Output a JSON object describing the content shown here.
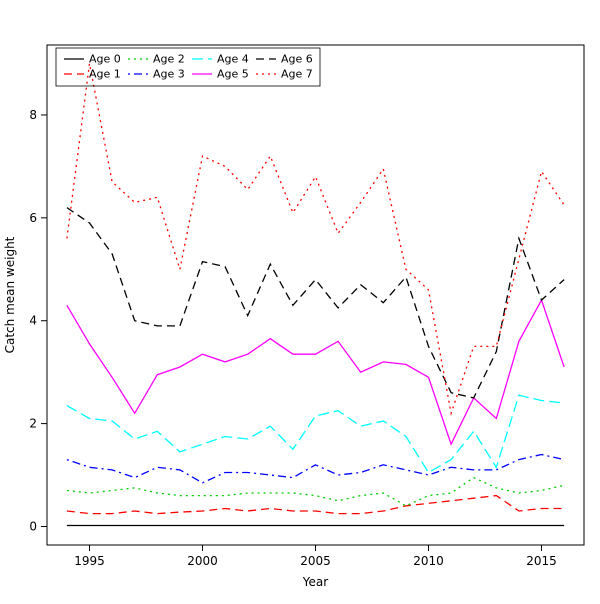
{
  "figure": {
    "background": "#ffffff",
    "axis_color": "#000000"
  },
  "chart_data": {
    "type": "line",
    "title": "",
    "xlabel": "Year",
    "ylabel": "Catch mean weight",
    "x": [
      1994,
      1995,
      1996,
      1997,
      1998,
      1999,
      2000,
      2001,
      2002,
      2003,
      2004,
      2005,
      2006,
      2007,
      2008,
      2009,
      2010,
      2011,
      2012,
      2013,
      2014,
      2015,
      2016
    ],
    "xlim": [
      1993.12,
      2016.88
    ],
    "ylim": [
      -0.36,
      9.36
    ],
    "x_ticks": [
      1995,
      2000,
      2005,
      2010,
      2015
    ],
    "y_ticks": [
      0,
      2,
      4,
      6,
      8
    ],
    "grid": false,
    "legend_position": "top-left",
    "legend_columns": 4,
    "series": [
      {
        "name": "Age 0",
        "color": "#000000",
        "linetype": "solid",
        "values": [
          0.02,
          0.02,
          0.02,
          0.02,
          0.02,
          0.02,
          0.02,
          0.02,
          0.02,
          0.02,
          0.02,
          0.02,
          0.02,
          0.02,
          0.02,
          0.02,
          0.02,
          0.02,
          0.02,
          0.02,
          0.02,
          0.02,
          0.02
        ]
      },
      {
        "name": "Age 1",
        "color": "#ff0000",
        "linetype": "dashed",
        "values": [
          0.3,
          0.25,
          0.25,
          0.3,
          0.25,
          0.28,
          0.3,
          0.35,
          0.3,
          0.35,
          0.3,
          0.3,
          0.25,
          0.25,
          0.3,
          0.4,
          0.45,
          0.5,
          0.55,
          0.6,
          0.3,
          0.35,
          0.35
        ]
      },
      {
        "name": "Age 2",
        "color": "#00cc00",
        "linetype": "dotted",
        "values": [
          0.7,
          0.65,
          0.7,
          0.75,
          0.65,
          0.6,
          0.6,
          0.6,
          0.65,
          0.65,
          0.65,
          0.6,
          0.5,
          0.6,
          0.65,
          0.4,
          0.6,
          0.65,
          0.95,
          0.75,
          0.65,
          0.7,
          0.8
        ]
      },
      {
        "name": "Age 3",
        "color": "#0000ff",
        "linetype": "dotdash",
        "values": [
          1.3,
          1.15,
          1.1,
          0.95,
          1.15,
          1.1,
          0.85,
          1.05,
          1.05,
          1.0,
          0.95,
          1.2,
          1.0,
          1.05,
          1.2,
          1.1,
          1.0,
          1.15,
          1.1,
          1.1,
          1.3,
          1.4,
          1.3
        ]
      },
      {
        "name": "Age 4",
        "color": "#00ffff",
        "linetype": "longdash",
        "values": [
          2.35,
          2.1,
          2.05,
          1.7,
          1.85,
          1.45,
          1.6,
          1.75,
          1.7,
          1.95,
          1.5,
          2.15,
          2.25,
          1.95,
          2.05,
          1.75,
          1.05,
          1.3,
          1.85,
          1.15,
          2.55,
          2.45,
          2.4
        ]
      },
      {
        "name": "Age 5",
        "color": "#ff00ff",
        "linetype": "solid",
        "values": [
          4.3,
          3.55,
          2.9,
          2.2,
          2.95,
          3.1,
          3.35,
          3.2,
          3.35,
          3.65,
          3.35,
          3.35,
          3.6,
          3.0,
          3.2,
          3.15,
          2.9,
          1.6,
          2.5,
          2.1,
          3.6,
          4.4,
          3.1
        ]
      },
      {
        "name": "Age 6",
        "color": "#000000",
        "linetype": "dashed",
        "values": [
          6.2,
          5.9,
          5.3,
          4.0,
          3.9,
          3.9,
          5.15,
          5.05,
          4.1,
          5.1,
          4.3,
          4.8,
          4.25,
          4.7,
          4.35,
          4.85,
          3.5,
          2.6,
          2.5,
          3.4,
          5.6,
          4.4,
          4.8
        ]
      },
      {
        "name": "Age 7",
        "color": "#ff0000",
        "linetype": "dotted",
        "values": [
          5.6,
          9.0,
          6.7,
          6.3,
          6.4,
          5.0,
          7.2,
          7.0,
          6.55,
          7.2,
          6.1,
          6.8,
          5.7,
          6.3,
          6.95,
          5.0,
          4.6,
          2.2,
          3.5,
          3.5,
          5.2,
          6.9,
          6.25
        ]
      }
    ]
  }
}
